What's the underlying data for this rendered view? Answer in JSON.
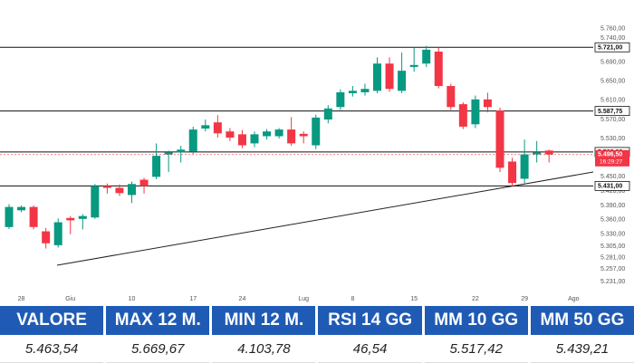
{
  "chart_data": {
    "type": "candlestick",
    "categories": [
      null,
      "28",
      null,
      null,
      null,
      "Giu",
      null,
      null,
      null,
      null,
      "10",
      null,
      null,
      null,
      null,
      "17",
      null,
      null,
      null,
      "24",
      null,
      null,
      null,
      null,
      "Lug",
      null,
      null,
      null,
      "8",
      null,
      null,
      null,
      null,
      "15",
      null,
      null,
      null,
      null,
      "22",
      null,
      null,
      null,
      "29",
      null,
      null,
      null,
      "Ago"
    ],
    "open": [
      5345,
      5380,
      5387,
      5336,
      5307,
      5364,
      5362,
      5365,
      5431,
      5427,
      5412,
      5444,
      5450,
      5497,
      5501,
      5503,
      5551,
      5564,
      5545,
      5539,
      5520,
      5535,
      5535,
      5549,
      5540,
      5516,
      5570,
      5596,
      5625,
      5627,
      5630,
      5687,
      5630,
      5680,
      5687,
      5712,
      5640,
      5602,
      5560,
      5612,
      5589,
      5482,
      5446,
      5497,
      5505,
      null,
      null
    ],
    "high": [
      5393,
      5390,
      5390,
      5343,
      5363,
      5368,
      5372,
      5435,
      5436,
      5434,
      5440,
      5448,
      5520,
      5505,
      5515,
      5555,
      5570,
      5579,
      5552,
      5548,
      5545,
      5550,
      5552,
      5575,
      5545,
      5580,
      5600,
      5633,
      5640,
      5645,
      5700,
      5700,
      5710,
      5720,
      5724,
      5721,
      5645,
      5606,
      5620,
      5626,
      5595,
      5490,
      5528,
      5525,
      5507,
      null,
      null
    ],
    "low": [
      5341,
      5376,
      5340,
      5300,
      5302,
      5330,
      5340,
      5362,
      5415,
      5410,
      5395,
      5415,
      5445,
      5460,
      5480,
      5498,
      5545,
      5532,
      5525,
      5510,
      5512,
      5528,
      5530,
      5515,
      5520,
      5508,
      5562,
      5590,
      5618,
      5620,
      5625,
      5628,
      5625,
      5670,
      5680,
      5635,
      5590,
      5550,
      5552,
      5585,
      5460,
      5430,
      5437,
      5480,
      5480,
      null,
      null
    ],
    "close": [
      5387,
      5387,
      5345,
      5311,
      5355,
      5359,
      5368,
      5431,
      5427,
      5416,
      5435,
      5431,
      5494,
      5501,
      5507,
      5549,
      5558,
      5541,
      5532,
      5516,
      5539,
      5545,
      5549,
      5520,
      5535,
      5574,
      5593,
      5627,
      5630,
      5634,
      5687,
      5634,
      5672,
      5684,
      5716,
      5640,
      5596,
      5555,
      5612,
      5596,
      5469,
      5437,
      5497,
      5501,
      5497,
      null,
      null
    ],
    "up_color": "#089981",
    "down_color": "#f23645",
    "ylim": [
      5195,
      5820
    ],
    "yticks": [
      {
        "value": 5760,
        "label": "5.760,00"
      },
      {
        "value": 5740,
        "label": "5.740,00"
      },
      {
        "value": 5690,
        "label": "5.690,00"
      },
      {
        "value": 5650,
        "label": "5.650,00"
      },
      {
        "value": 5610,
        "label": "5.610,00"
      },
      {
        "value": 5570,
        "label": "5.570,00"
      },
      {
        "value": 5530,
        "label": "5.530,00"
      },
      {
        "value": 5450,
        "label": "5.450,00"
      },
      {
        "value": 5420,
        "label": "5.420,00"
      },
      {
        "value": 5390,
        "label": "5.390,00"
      },
      {
        "value": 5360,
        "label": "5.360,00"
      },
      {
        "value": 5330,
        "label": "5.330,00"
      },
      {
        "value": 5305,
        "label": "5.305,00"
      },
      {
        "value": 5281,
        "label": "5.281,00"
      },
      {
        "value": 5257,
        "label": "5.257,00"
      },
      {
        "value": 5231,
        "label": "5.231,00"
      }
    ],
    "levels": [
      {
        "value": 5721,
        "label": "5.721,00"
      },
      {
        "value": 5587.75,
        "label": "5.587,75"
      },
      {
        "value": 5502,
        "label": "5.502,00"
      },
      {
        "value": 5431,
        "label": "5.431,00"
      }
    ],
    "last_price": {
      "value": 5496.5,
      "label": "5.496,50",
      "time": "16:29:27"
    }
  },
  "table": {
    "headers": [
      "VALORE",
      "MAX 12 M.",
      "MIN 12 M.",
      "RSI 14 GG",
      "MM 10 GG",
      "MM 50 GG"
    ],
    "values": [
      "5.463,54",
      "5.669,67",
      "4.103,78",
      "46,54",
      "5.517,42",
      "5.439,21"
    ]
  }
}
